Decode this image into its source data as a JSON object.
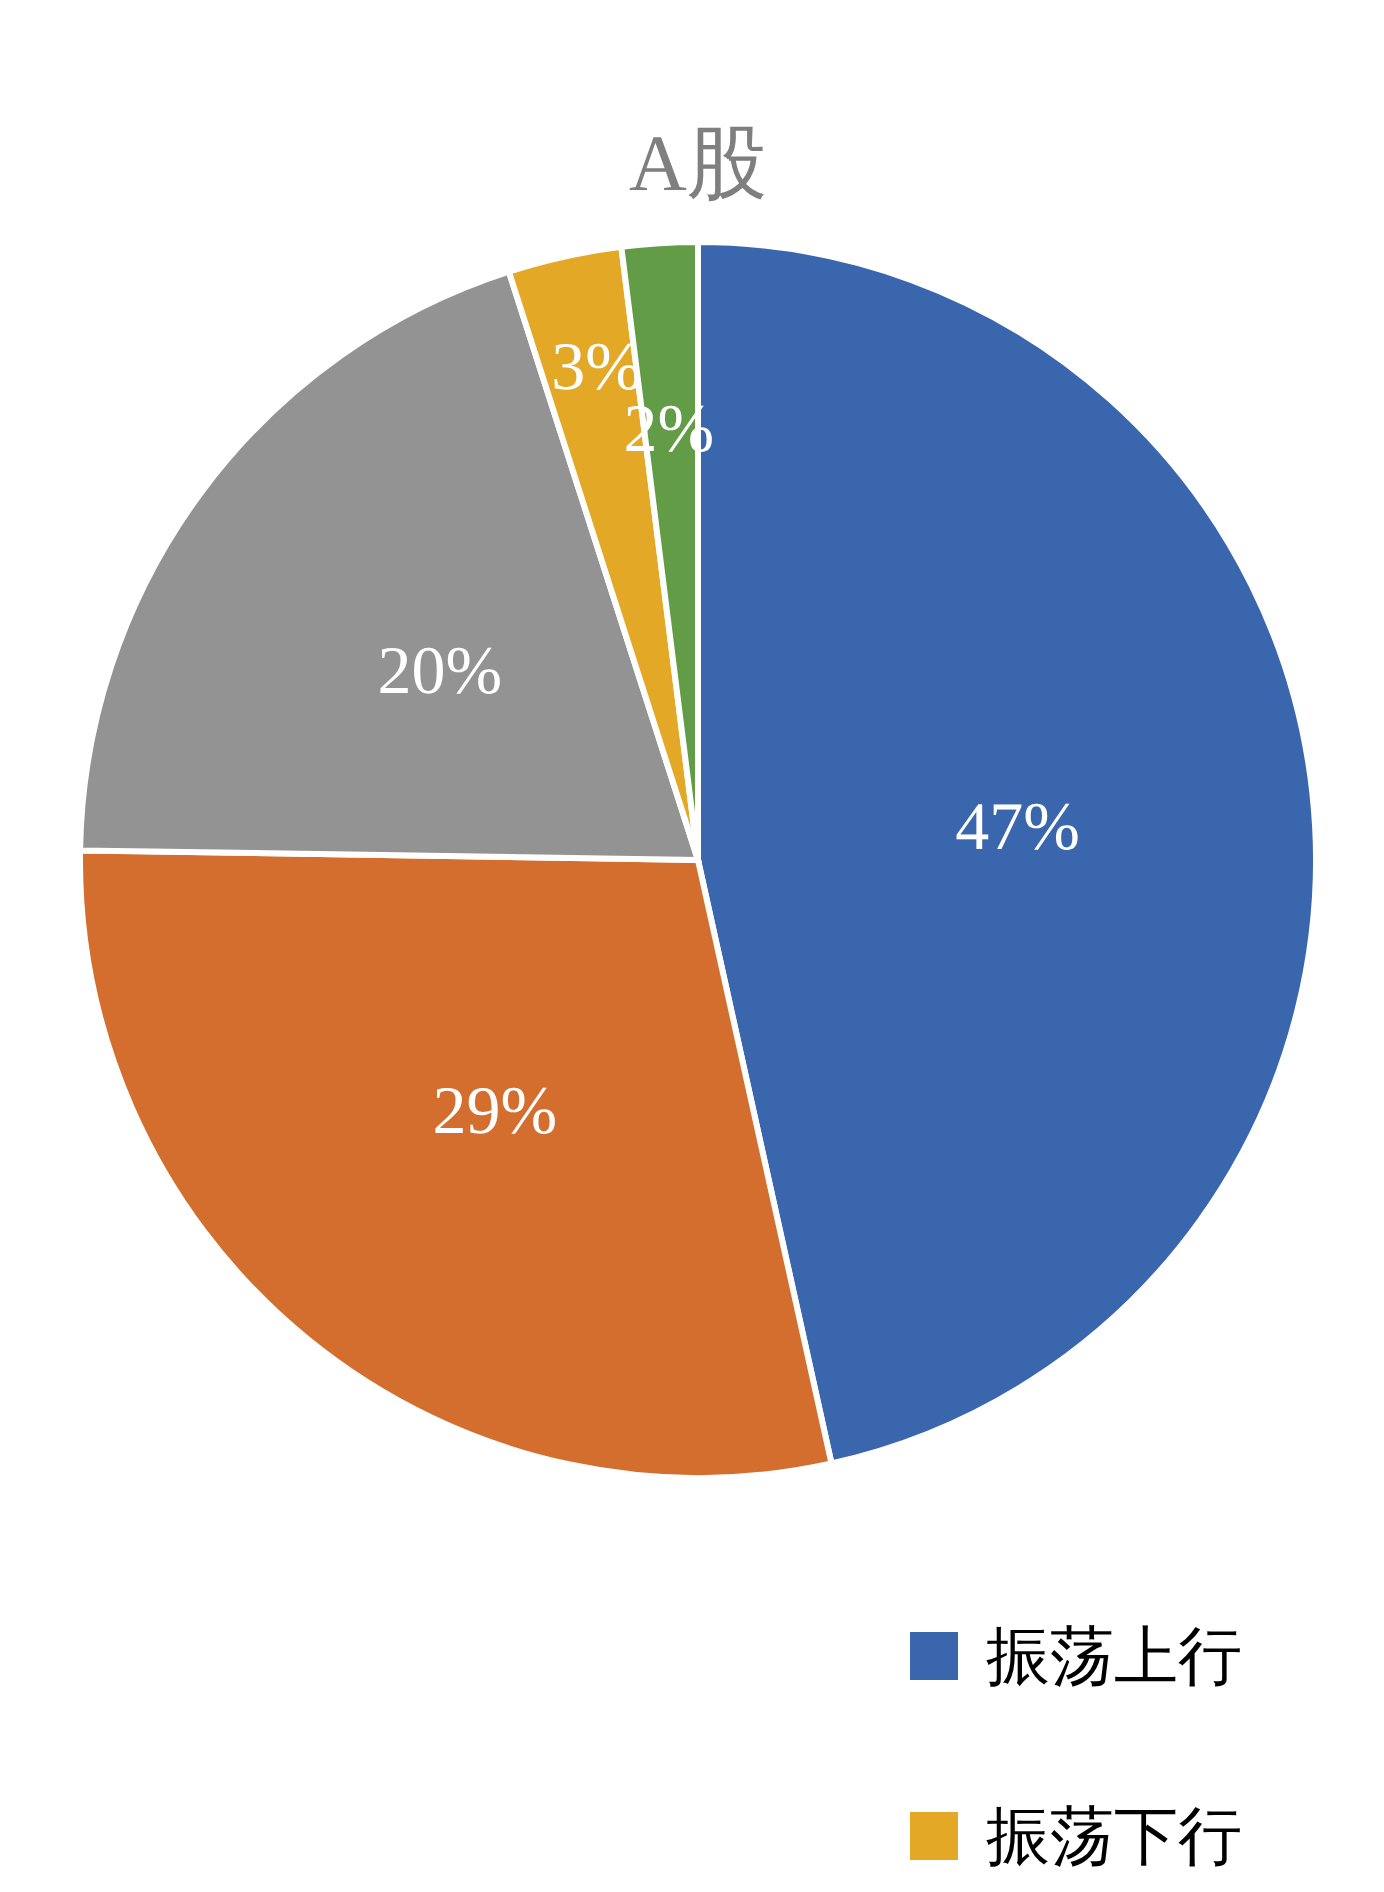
{
  "chart_data": {
    "type": "pie",
    "title": "A股",
    "categories": [
      "振荡上行",
      null,
      null,
      "振荡下行",
      null
    ],
    "values": [
      47,
      29,
      20,
      3,
      2
    ],
    "colors": [
      "#3a66ad",
      "#d46e2e",
      "#939393",
      "#e3a826",
      "#629c46"
    ],
    "value_labels": [
      "47%",
      "29%",
      "20%",
      "3%",
      "2%"
    ],
    "legend": "bottom right"
  }
}
